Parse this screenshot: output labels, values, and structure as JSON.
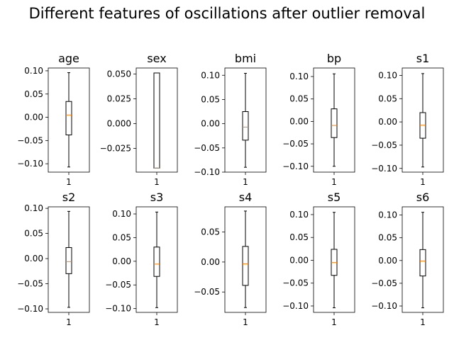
{
  "chart_data": {
    "type": "boxplot",
    "title": "Different features of oscillations after outlier removal",
    "median_color": "#ff7f0e",
    "box_color": "#000000",
    "subplots": [
      {
        "title": "age",
        "category": "1",
        "ylim": [
          -0.118,
          0.106
        ],
        "yticks": [
          0.1,
          0.05,
          0.0,
          -0.05,
          -0.1
        ],
        "ytick_labels": [
          "0.10",
          "0.05",
          "0.00",
          "−0.05",
          "−0.10"
        ],
        "box": {
          "whislo": -0.107,
          "q1": -0.038,
          "med": 0.005,
          "q3": 0.034,
          "whishi": 0.096
        }
      },
      {
        "title": "sex",
        "category": "1",
        "ylim": [
          -0.049,
          0.056
        ],
        "yticks": [
          0.05,
          0.025,
          0.0,
          -0.025
        ],
        "ytick_labels": [
          "0.050",
          "0.025",
          "0.000",
          "−0.025"
        ],
        "box": {
          "whislo": -0.045,
          "q1": -0.045,
          "med": -0.045,
          "q3": 0.051,
          "whishi": 0.051
        }
      },
      {
        "title": "bmi",
        "category": "1",
        "ylim": [
          -0.1,
          0.115
        ],
        "yticks": [
          0.1,
          0.05,
          0.0,
          -0.05,
          -0.1
        ],
        "ytick_labels": [
          "0.10",
          "0.05",
          "0.00",
          "−0.05",
          "−0.10"
        ],
        "box": {
          "whislo": -0.09,
          "q1": -0.034,
          "med": -0.007,
          "q3": 0.025,
          "whishi": 0.104
        }
      },
      {
        "title": "bp",
        "category": "1",
        "ylim": [
          -0.113,
          0.119
        ],
        "yticks": [
          0.1,
          0.05,
          0.0,
          -0.05,
          -0.1
        ],
        "ytick_labels": [
          "0.10",
          "0.05",
          "0.00",
          "−0.05",
          "−0.10"
        ],
        "box": {
          "whislo": -0.1,
          "q1": -0.036,
          "med": -0.009,
          "q3": 0.028,
          "whishi": 0.106
        }
      },
      {
        "title": "s1",
        "category": "1",
        "ylim": [
          -0.108,
          0.116
        ],
        "yticks": [
          0.1,
          0.05,
          0.0,
          -0.05,
          -0.1
        ],
        "ytick_labels": [
          "0.10",
          "0.05",
          "0.00",
          "−0.05",
          "−0.10"
        ],
        "box": {
          "whislo": -0.097,
          "q1": -0.035,
          "med": -0.007,
          "q3": 0.02,
          "whishi": 0.104
        }
      },
      {
        "title": "s2",
        "category": "1",
        "ylim": [
          -0.107,
          0.103
        ],
        "yticks": [
          0.1,
          0.05,
          0.0,
          -0.05,
          -0.1
        ],
        "ytick_labels": [
          "0.10",
          "0.05",
          "0.00",
          "−0.05",
          "−0.10"
        ],
        "box": {
          "whislo": -0.097,
          "q1": -0.03,
          "med": -0.006,
          "q3": 0.022,
          "whishi": 0.094
        }
      },
      {
        "title": "s3",
        "category": "1",
        "ylim": [
          -0.108,
          0.115
        ],
        "yticks": [
          0.1,
          0.05,
          0.0,
          -0.05,
          -0.1
        ],
        "ytick_labels": [
          "0.10",
          "0.05",
          "0.00",
          "−0.05",
          "−0.10"
        ],
        "box": {
          "whislo": -0.098,
          "q1": -0.032,
          "med": -0.006,
          "q3": 0.03,
          "whishi": 0.104
        }
      },
      {
        "title": "s4",
        "category": "1",
        "ylim": [
          -0.084,
          0.092
        ],
        "yticks": [
          0.05,
          0.0,
          -0.05
        ],
        "ytick_labels": [
          "0.05",
          "0.00",
          "−0.05"
        ],
        "box": {
          "whislo": -0.076,
          "q1": -0.039,
          "med": -0.003,
          "q3": 0.026,
          "whishi": 0.085
        }
      },
      {
        "title": "s5",
        "category": "1",
        "ylim": [
          -0.114,
          0.117
        ],
        "yticks": [
          0.1,
          0.05,
          0.0,
          -0.05,
          -0.1
        ],
        "ytick_labels": [
          "0.10",
          "0.05",
          "0.00",
          "−0.05",
          "−0.10"
        ],
        "box": {
          "whislo": -0.104,
          "q1": -0.033,
          "med": -0.005,
          "q3": 0.024,
          "whishi": 0.105
        }
      },
      {
        "title": "s6",
        "category": "1",
        "ylim": [
          -0.114,
          0.118
        ],
        "yticks": [
          0.1,
          0.05,
          0.0,
          -0.05,
          -0.1
        ],
        "ytick_labels": [
          "0.10",
          "0.05",
          "0.00",
          "−0.05",
          "−0.10"
        ],
        "box": {
          "whislo": -0.104,
          "q1": -0.034,
          "med": -0.001,
          "q3": 0.024,
          "whishi": 0.106
        }
      }
    ]
  }
}
